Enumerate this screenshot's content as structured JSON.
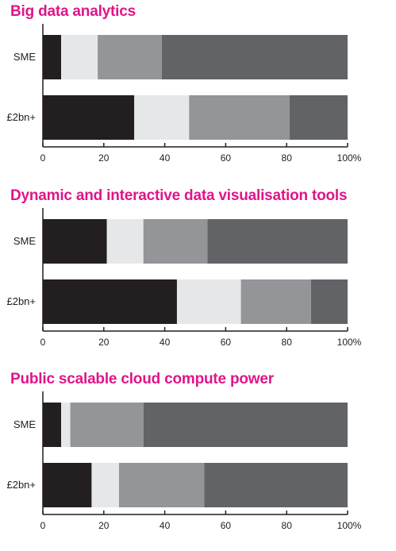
{
  "colors": {
    "title": "#e0158a",
    "segments": [
      "#231f20",
      "#e6e7e8",
      "#939598",
      "#626366"
    ],
    "axis": "#231f20"
  },
  "chart_data": [
    {
      "type": "bar",
      "orientation": "horizontal",
      "stacked": true,
      "title": "Big data analytics",
      "categories": [
        "SME",
        "£2bn+"
      ],
      "series": [
        {
          "values": [
            6,
            30
          ]
        },
        {
          "values": [
            12,
            18
          ]
        },
        {
          "values": [
            21,
            33
          ]
        },
        {
          "values": [
            61,
            19
          ]
        }
      ],
      "xlim": [
        0,
        100
      ],
      "ticks": [
        "0",
        "20",
        "40",
        "60",
        "80",
        "100%"
      ]
    },
    {
      "type": "bar",
      "orientation": "horizontal",
      "stacked": true,
      "title": "Dynamic and interactive data visualisation tools",
      "categories": [
        "SME",
        "£2bn+"
      ],
      "series": [
        {
          "values": [
            21,
            44
          ]
        },
        {
          "values": [
            12,
            21
          ]
        },
        {
          "values": [
            21,
            23
          ]
        },
        {
          "values": [
            46,
            12
          ]
        }
      ],
      "xlim": [
        0,
        100
      ],
      "ticks": [
        "0",
        "20",
        "40",
        "60",
        "80",
        "100%"
      ]
    },
    {
      "type": "bar",
      "orientation": "horizontal",
      "stacked": true,
      "title": "Public scalable cloud compute power",
      "categories": [
        "SME",
        "£2bn+"
      ],
      "series": [
        {
          "values": [
            6,
            16
          ]
        },
        {
          "values": [
            3,
            9
          ]
        },
        {
          "values": [
            24,
            28
          ]
        },
        {
          "values": [
            67,
            47
          ]
        }
      ],
      "xlim": [
        0,
        100
      ],
      "ticks": [
        "0",
        "20",
        "40",
        "60",
        "80",
        "100%"
      ]
    }
  ]
}
